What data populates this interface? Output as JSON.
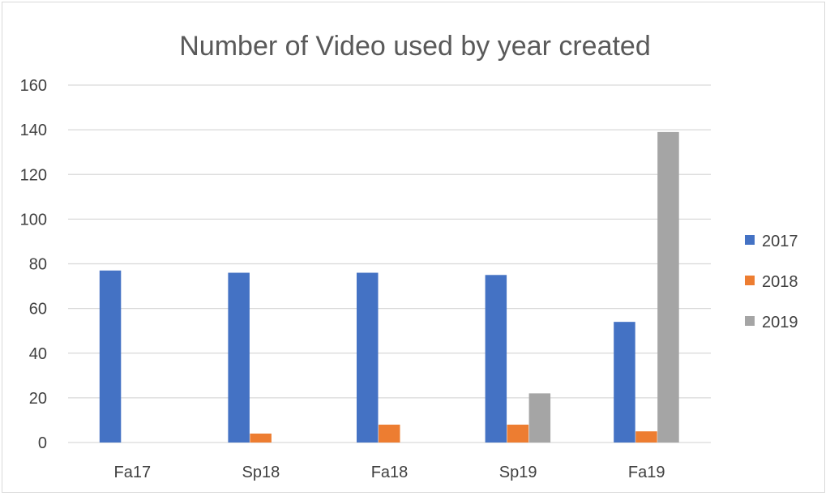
{
  "chart_data": {
    "type": "bar",
    "title": "Number of Video used by year created",
    "xlabel": "",
    "ylabel": "",
    "categories": [
      "Fa17",
      "Sp18",
      "Fa18",
      "Sp19",
      "Fa19"
    ],
    "series": [
      {
        "name": "2017",
        "color": "#4472C4",
        "values": [
          77,
          76,
          76,
          75,
          54
        ]
      },
      {
        "name": "2018",
        "color": "#ED7D31",
        "values": [
          0,
          4,
          8,
          8,
          5
        ]
      },
      {
        "name": "2019",
        "color": "#A5A5A5",
        "values": [
          0,
          0,
          0,
          22,
          139
        ]
      }
    ],
    "ylim": [
      0,
      160
    ],
    "yticks": [
      "0",
      "20",
      "40",
      "60",
      "80",
      "100",
      "120",
      "140",
      "160"
    ],
    "grid": true,
    "legend_position": "right"
  }
}
